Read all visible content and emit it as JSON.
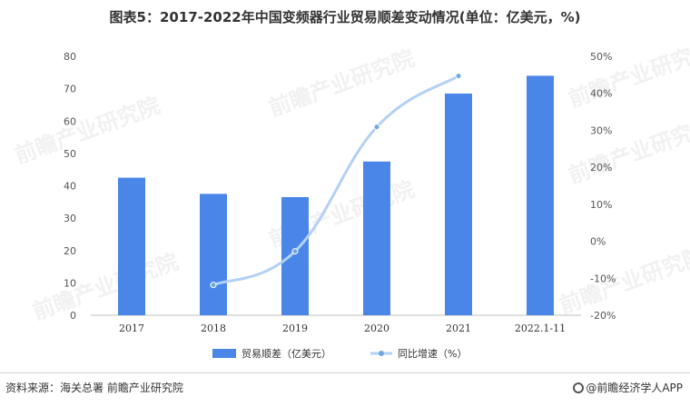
{
  "title": "图表5：2017-2022年中国变频器行业贸易顺差变动情况(单位：亿美元，%)",
  "source": "资料来源：海关总署 前瞻产业研究院",
  "brand": "@前瞻经济学人APP",
  "watermark": "前瞻产业研究院",
  "colors": {
    "bar": "#4a86e8",
    "line": "#b3d1f5",
    "marker": "#6fa8dc"
  },
  "chart_data": {
    "type": "bar",
    "categories": [
      "2017",
      "2018",
      "2019",
      "2020",
      "2021",
      "2022.1-11"
    ],
    "series": [
      {
        "name": "贸易顺差（亿美元）",
        "type": "bar",
        "axis": "left",
        "values": [
          42.5,
          37.5,
          36.5,
          47.5,
          68.5,
          74.0
        ]
      },
      {
        "name": "同比增速（%）",
        "type": "line",
        "axis": "right",
        "values": [
          null,
          -11.8,
          -2.7,
          30.9,
          44.7,
          null
        ]
      }
    ],
    "y_left": {
      "ylim": [
        0,
        80
      ],
      "ticks": [
        "0",
        "10",
        "20",
        "30",
        "40",
        "50",
        "60",
        "70",
        "80"
      ]
    },
    "y_right": {
      "ylim": [
        -20,
        50
      ],
      "ticks": [
        "-20%",
        "-10%",
        "0%",
        "10%",
        "20%",
        "30%",
        "40%",
        "50%"
      ]
    },
    "legend_position": "bottom",
    "grid": false
  }
}
